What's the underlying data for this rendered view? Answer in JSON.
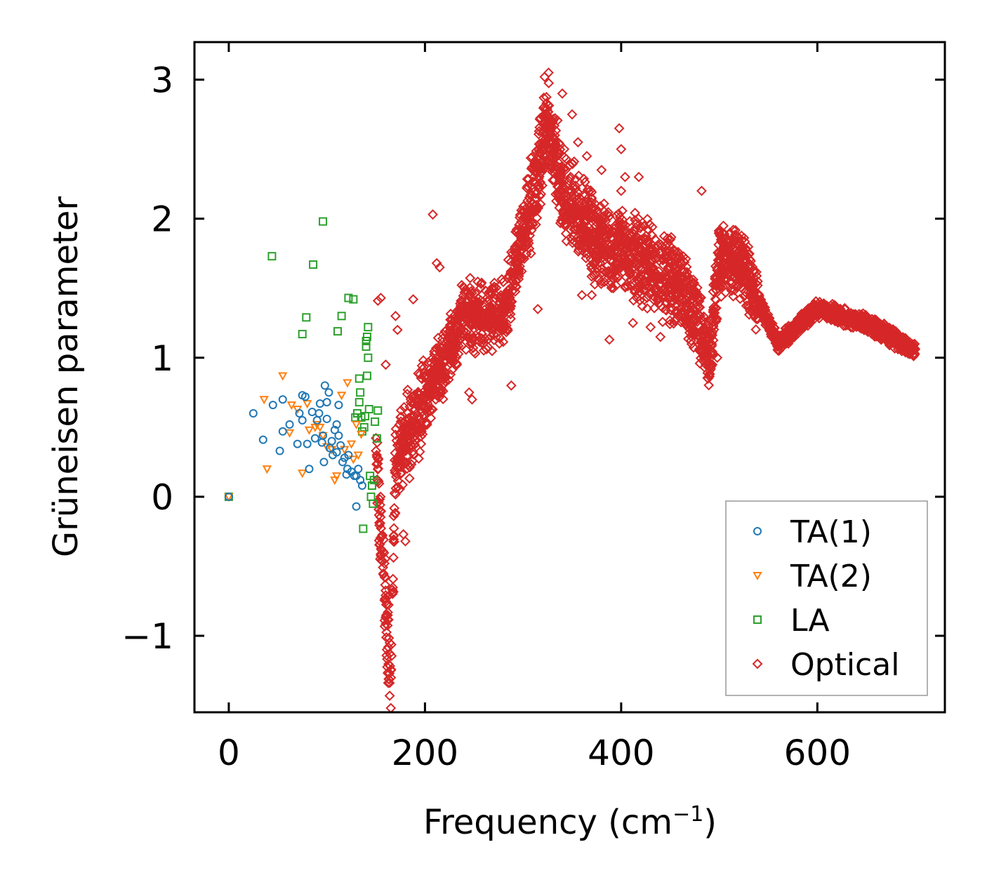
{
  "chart_data": {
    "type": "scatter",
    "title": "",
    "xlabel": "Frequency (cm",
    "xlabel_sup": "−1",
    "xlabel_tail": ")",
    "ylabel": "Grüneisen parameter",
    "xlim": [
      -35,
      730
    ],
    "ylim": [
      -1.55,
      3.27
    ],
    "xticks": [
      0,
      200,
      400,
      600
    ],
    "xtick_labels": [
      "0",
      "200",
      "400",
      "600"
    ],
    "yticks": [
      -1,
      0,
      1,
      2,
      3
    ],
    "ytick_labels": [
      "−1",
      "0",
      "1",
      "2",
      "3"
    ],
    "grid": false,
    "legend_position": "lower-right",
    "colors": {
      "ta1": "#1f77b4",
      "ta2": "#ff7f0e",
      "la": "#2ca02c",
      "optical": "#d62728",
      "legend_border": "#999999"
    },
    "series": [
      {
        "name": "TA(1)",
        "marker": "circle",
        "color": "#1f77b4",
        "points": [
          [
            0,
            0
          ],
          [
            25,
            0.6
          ],
          [
            35,
            0.41
          ],
          [
            45,
            0.66
          ],
          [
            52,
            0.33
          ],
          [
            55,
            0.7
          ],
          [
            55,
            0.47
          ],
          [
            62,
            0.52
          ],
          [
            70,
            0.38
          ],
          [
            72,
            0.6
          ],
          [
            75,
            0.73
          ],
          [
            75,
            0.55
          ],
          [
            78,
            0.72
          ],
          [
            80,
            0.38
          ],
          [
            82,
            0.2
          ],
          [
            85,
            0.61
          ],
          [
            88,
            0.42
          ],
          [
            90,
            0.55
          ],
          [
            92,
            0.6
          ],
          [
            93,
            0.67
          ],
          [
            95,
            0.39
          ],
          [
            96,
            0.44
          ],
          [
            97,
            0.25
          ],
          [
            98,
            0.8
          ],
          [
            100,
            0.56
          ],
          [
            100,
            0.68
          ],
          [
            102,
            0.75
          ],
          [
            103,
            0.35
          ],
          [
            105,
            0.4
          ],
          [
            106,
            0.3
          ],
          [
            108,
            0.48
          ],
          [
            110,
            0.52
          ],
          [
            110,
            0.32
          ],
          [
            112,
            0.44
          ],
          [
            112,
            0.66
          ],
          [
            114,
            0.37
          ],
          [
            116,
            0.25
          ],
          [
            118,
            0.28
          ],
          [
            120,
            0.16
          ],
          [
            121,
            0.2
          ],
          [
            122,
            0.3
          ],
          [
            125,
            0.18
          ],
          [
            128,
            0.15
          ],
          [
            130,
            -0.07
          ],
          [
            130,
            0.15
          ],
          [
            132,
            0.2
          ],
          [
            134,
            0.12
          ],
          [
            136,
            0.08
          ]
        ]
      },
      {
        "name": "TA(2)",
        "marker": "triangle-down",
        "color": "#ff7f0e",
        "points": [
          [
            0,
            0
          ],
          [
            36,
            0.7
          ],
          [
            39,
            0.2
          ],
          [
            55,
            0.87
          ],
          [
            62,
            0.46
          ],
          [
            64,
            0.66
          ],
          [
            70,
            0.63
          ],
          [
            75,
            0.17
          ],
          [
            80,
            0.67
          ],
          [
            82,
            0.48
          ],
          [
            88,
            0.5
          ],
          [
            90,
            0.52
          ],
          [
            93,
            0.5
          ],
          [
            96,
            0.44
          ],
          [
            100,
            0.36
          ],
          [
            105,
            0.34
          ],
          [
            108,
            0.12
          ],
          [
            110,
            0.15
          ],
          [
            115,
            0.73
          ],
          [
            118,
            0.34
          ],
          [
            121,
            0.82
          ],
          [
            125,
            0.38
          ],
          [
            127,
            0.27
          ],
          [
            130,
            0.52
          ],
          [
            132,
            0.3
          ],
          [
            135,
            0.45
          ]
        ]
      },
      {
        "name": "LA",
        "marker": "square",
        "color": "#2ca02c",
        "points": [
          [
            0,
            0
          ],
          [
            44,
            1.73
          ],
          [
            75,
            1.17
          ],
          [
            79,
            1.29
          ],
          [
            86,
            1.67
          ],
          [
            96,
            1.98
          ],
          [
            111,
            1.19
          ],
          [
            115,
            1.3
          ],
          [
            122,
            1.43
          ],
          [
            127,
            1.42
          ],
          [
            129,
            0.57
          ],
          [
            131,
            0.6
          ],
          [
            133,
            0.85
          ],
          [
            133,
            0.68
          ],
          [
            134,
            0.75
          ],
          [
            135,
            0.57
          ],
          [
            136,
            0.47
          ],
          [
            137,
            -0.23
          ],
          [
            138,
            0.5
          ],
          [
            139,
            0.58
          ],
          [
            140,
            1.08
          ],
          [
            140,
            1.12
          ],
          [
            141,
            0.87
          ],
          [
            141,
            1.15
          ],
          [
            142,
            1.22
          ],
          [
            142,
            1.0
          ],
          [
            143,
            0.63
          ],
          [
            144,
            0.15
          ],
          [
            145,
            0.0
          ],
          [
            146,
            0.08
          ],
          [
            147,
            -0.05
          ],
          [
            148,
            0.12
          ],
          [
            149,
            0.54
          ],
          [
            151,
            0.42
          ],
          [
            152,
            0.62
          ]
        ]
      },
      {
        "name": "Optical",
        "marker": "diamond",
        "color": "#d62728",
        "band": [
          [
            150,
            0.3
          ],
          [
            160,
            -0.8
          ],
          [
            165,
            -1.35
          ],
          [
            170,
            0.3
          ],
          [
            180,
            0.4
          ],
          [
            200,
            0.7
          ],
          [
            220,
            1.0
          ],
          [
            240,
            1.3
          ],
          [
            260,
            1.3
          ],
          [
            280,
            1.3
          ],
          [
            300,
            1.9
          ],
          [
            315,
            2.3
          ],
          [
            325,
            2.7
          ],
          [
            340,
            2.2
          ],
          [
            360,
            2.0
          ],
          [
            380,
            1.8
          ],
          [
            400,
            1.8
          ],
          [
            420,
            1.7
          ],
          [
            440,
            1.6
          ],
          [
            460,
            1.5
          ],
          [
            480,
            1.2
          ],
          [
            490,
            1.0
          ],
          [
            500,
            1.7
          ],
          [
            520,
            1.7
          ],
          [
            540,
            1.4
          ],
          [
            560,
            1.1
          ],
          [
            600,
            1.35
          ],
          [
            650,
            1.25
          ],
          [
            700,
            1.05
          ]
        ],
        "outliers": [
          [
            152,
            1.41
          ],
          [
            155,
            1.43
          ],
          [
            160,
            0.95
          ],
          [
            170,
            1.3
          ],
          [
            172,
            1.2
          ],
          [
            178,
            -0.27
          ],
          [
            180,
            -0.32
          ],
          [
            188,
            1.42
          ],
          [
            208,
            2.03
          ],
          [
            212,
            1.68
          ],
          [
            215,
            1.65
          ],
          [
            245,
            0.75
          ],
          [
            248,
            0.7
          ],
          [
            288,
            0.8
          ],
          [
            308,
            1.75
          ],
          [
            315,
            1.35
          ],
          [
            322,
            3.02
          ],
          [
            326,
            3.05
          ],
          [
            340,
            2.9
          ],
          [
            342,
            2.5
          ],
          [
            350,
            2.75
          ],
          [
            356,
            2.55
          ],
          [
            360,
            1.45
          ],
          [
            370,
            1.45
          ],
          [
            365,
            2.45
          ],
          [
            380,
            2.35
          ],
          [
            388,
            1.13
          ],
          [
            392,
            1.5
          ],
          [
            398,
            2.65
          ],
          [
            400,
            2.5
          ],
          [
            400,
            2.2
          ],
          [
            404,
            2.3
          ],
          [
            412,
            1.25
          ],
          [
            418,
            2.3
          ],
          [
            430,
            1.22
          ],
          [
            440,
            1.15
          ],
          [
            450,
            1.85
          ],
          [
            470,
            1.25
          ],
          [
            480,
            1.05
          ],
          [
            482,
            2.2
          ],
          [
            485,
            0.93
          ],
          [
            493,
            0.95
          ],
          [
            498,
            1.0
          ]
        ]
      }
    ]
  }
}
